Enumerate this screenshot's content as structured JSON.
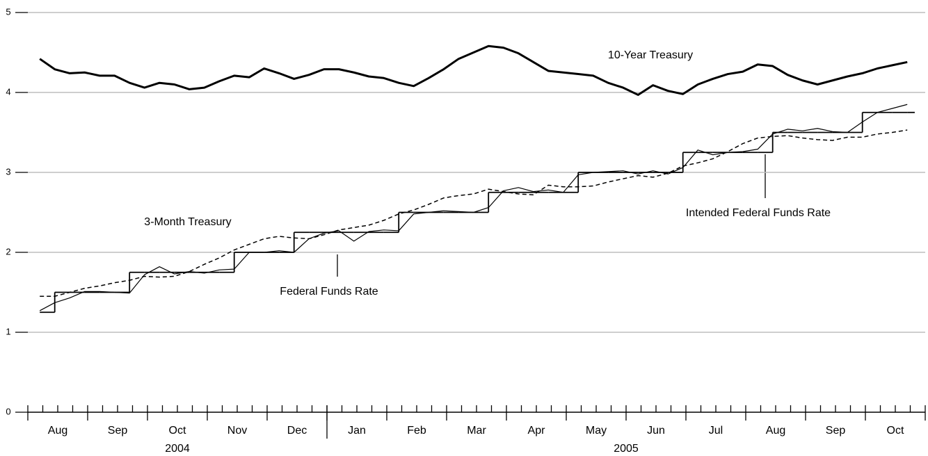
{
  "chart_data": {
    "type": "line",
    "x": [
      0.2,
      0.45,
      0.7,
      0.95,
      1.2,
      1.45,
      1.7,
      1.95,
      2.2,
      2.45,
      2.7,
      2.95,
      3.2,
      3.45,
      3.7,
      3.95,
      4.2,
      4.45,
      4.7,
      4.95,
      5.2,
      5.45,
      5.7,
      5.95,
      6.2,
      6.45,
      6.7,
      6.95,
      7.2,
      7.45,
      7.7,
      7.95,
      8.2,
      8.45,
      8.7,
      8.95,
      9.2,
      9.45,
      9.7,
      9.95,
      10.2,
      10.45,
      10.7,
      10.95,
      11.2,
      11.45,
      11.7,
      11.95,
      12.2,
      12.45,
      12.7,
      12.95,
      13.2,
      13.45,
      13.7,
      13.95,
      14.2,
      14.45,
      14.7
    ],
    "series": [
      {
        "name": "10-Year Treasury",
        "color": "#000000",
        "linewidth": 3,
        "linestyle": "solid",
        "values": [
          4.42,
          4.29,
          4.24,
          4.25,
          4.21,
          4.21,
          4.12,
          4.06,
          4.12,
          4.1,
          4.04,
          4.06,
          4.14,
          4.21,
          4.19,
          4.3,
          4.24,
          4.17,
          4.22,
          4.29,
          4.29,
          4.25,
          4.2,
          4.18,
          4.12,
          4.08,
          4.18,
          4.29,
          4.42,
          4.5,
          4.58,
          4.56,
          4.49,
          4.38,
          4.27,
          4.25,
          4.23,
          4.21,
          4.12,
          4.06,
          3.97,
          4.09,
          4.02,
          3.98,
          4.1,
          4.17,
          4.23,
          4.26,
          4.35,
          4.33,
          4.22,
          4.15,
          4.1,
          4.15,
          4.2,
          4.24,
          4.3,
          4.34,
          4.38
        ]
      },
      {
        "name": "3-Month Treasury",
        "color": "#000000",
        "linewidth": 1.5,
        "linestyle": "dashed",
        "values": [
          1.45,
          1.45,
          1.5,
          1.55,
          1.58,
          1.62,
          1.65,
          1.7,
          1.69,
          1.7,
          1.76,
          1.85,
          1.93,
          2.03,
          2.1,
          2.17,
          2.2,
          2.18,
          2.17,
          2.22,
          2.28,
          2.31,
          2.34,
          2.4,
          2.48,
          2.53,
          2.6,
          2.68,
          2.71,
          2.73,
          2.79,
          2.76,
          2.73,
          2.72,
          2.84,
          2.82,
          2.82,
          2.83,
          2.88,
          2.92,
          2.96,
          2.94,
          2.99,
          3.08,
          3.12,
          3.17,
          3.26,
          3.36,
          3.43,
          3.45,
          3.46,
          3.43,
          3.41,
          3.4,
          3.44,
          3.44,
          3.48,
          3.5,
          3.53
        ]
      },
      {
        "name": "Federal Funds Rate",
        "color": "#000000",
        "linewidth": 1.2,
        "linestyle": "solid",
        "values": [
          1.27,
          1.37,
          1.43,
          1.51,
          1.51,
          1.5,
          1.49,
          1.72,
          1.82,
          1.73,
          1.76,
          1.74,
          1.78,
          1.79,
          2.0,
          2.0,
          2.02,
          2.0,
          2.17,
          2.24,
          2.27,
          2.14,
          2.26,
          2.28,
          2.27,
          2.48,
          2.5,
          2.52,
          2.51,
          2.5,
          2.56,
          2.77,
          2.81,
          2.76,
          2.78,
          2.75,
          2.97,
          3.0,
          3.01,
          3.02,
          2.98,
          3.02,
          2.98,
          3.06,
          3.28,
          3.22,
          3.25,
          3.26,
          3.29,
          3.48,
          3.54,
          3.52,
          3.55,
          3.51,
          3.5,
          3.63,
          3.75,
          3.8,
          3.85
        ]
      },
      {
        "name": "Intended Federal Funds Rate",
        "color": "#000000",
        "linewidth": 1.8,
        "linestyle": "steps",
        "values": [
          1.25,
          1.5,
          1.5,
          1.5,
          1.5,
          1.5,
          1.75,
          1.75,
          1.75,
          1.75,
          1.75,
          1.75,
          1.75,
          2.0,
          2.0,
          2.0,
          2.0,
          2.25,
          2.25,
          2.25,
          2.25,
          2.25,
          2.25,
          2.25,
          2.5,
          2.5,
          2.5,
          2.5,
          2.5,
          2.5,
          2.75,
          2.75,
          2.75,
          2.75,
          2.75,
          2.75,
          3.0,
          3.0,
          3.0,
          3.0,
          3.0,
          3.0,
          3.0,
          3.25,
          3.25,
          3.25,
          3.25,
          3.25,
          3.25,
          3.5,
          3.5,
          3.5,
          3.5,
          3.5,
          3.5,
          3.75,
          3.75,
          3.75,
          3.75
        ]
      }
    ],
    "xlim": [
      0,
      15
    ],
    "xticks": [
      {
        "value": 0.5,
        "label": "Aug"
      },
      {
        "value": 1.5,
        "label": "Sep"
      },
      {
        "value": 2.5,
        "label": "Oct"
      },
      {
        "value": 3.5,
        "label": "Nov"
      },
      {
        "value": 4.5,
        "label": "Dec"
      },
      {
        "value": 5.5,
        "label": "Jan"
      },
      {
        "value": 6.5,
        "label": "Feb"
      },
      {
        "value": 7.5,
        "label": "Mar"
      },
      {
        "value": 8.5,
        "label": "Apr"
      },
      {
        "value": 9.5,
        "label": "May"
      },
      {
        "value": 10.5,
        "label": "Jun"
      },
      {
        "value": 11.5,
        "label": "Jul"
      },
      {
        "value": 12.5,
        "label": "Aug"
      },
      {
        "value": 13.5,
        "label": "Sep"
      },
      {
        "value": 14.5,
        "label": "Oct"
      }
    ],
    "x_major_ticks": [
      0,
      1,
      2,
      3,
      4,
      5,
      6,
      7,
      8,
      9,
      10,
      11,
      12,
      13,
      14,
      15
    ],
    "x_minor_ticks": [
      0.25,
      0.5,
      0.75,
      1.25,
      1.5,
      1.75,
      2.25,
      2.5,
      2.75,
      3.25,
      3.5,
      3.75,
      4.25,
      4.5,
      4.75,
      5.25,
      5.5,
      5.75,
      6.25,
      6.5,
      6.75,
      7.25,
      7.5,
      7.75,
      8.25,
      8.5,
      8.75,
      9.25,
      9.5,
      9.75,
      10.25,
      10.5,
      10.75,
      11.25,
      11.5,
      11.75,
      12.25,
      12.5,
      12.75,
      13.25,
      13.5,
      13.75,
      14.25,
      14.5,
      14.75
    ],
    "year_dividers": [
      5
    ],
    "year_labels": [
      {
        "value": 2.5,
        "label": "2004"
      },
      {
        "value": 10,
        "label": "2005"
      }
    ],
    "ylim": [
      0,
      5
    ],
    "yticks": [
      0,
      1,
      2,
      3,
      4,
      5
    ],
    "grid": true
  }
}
